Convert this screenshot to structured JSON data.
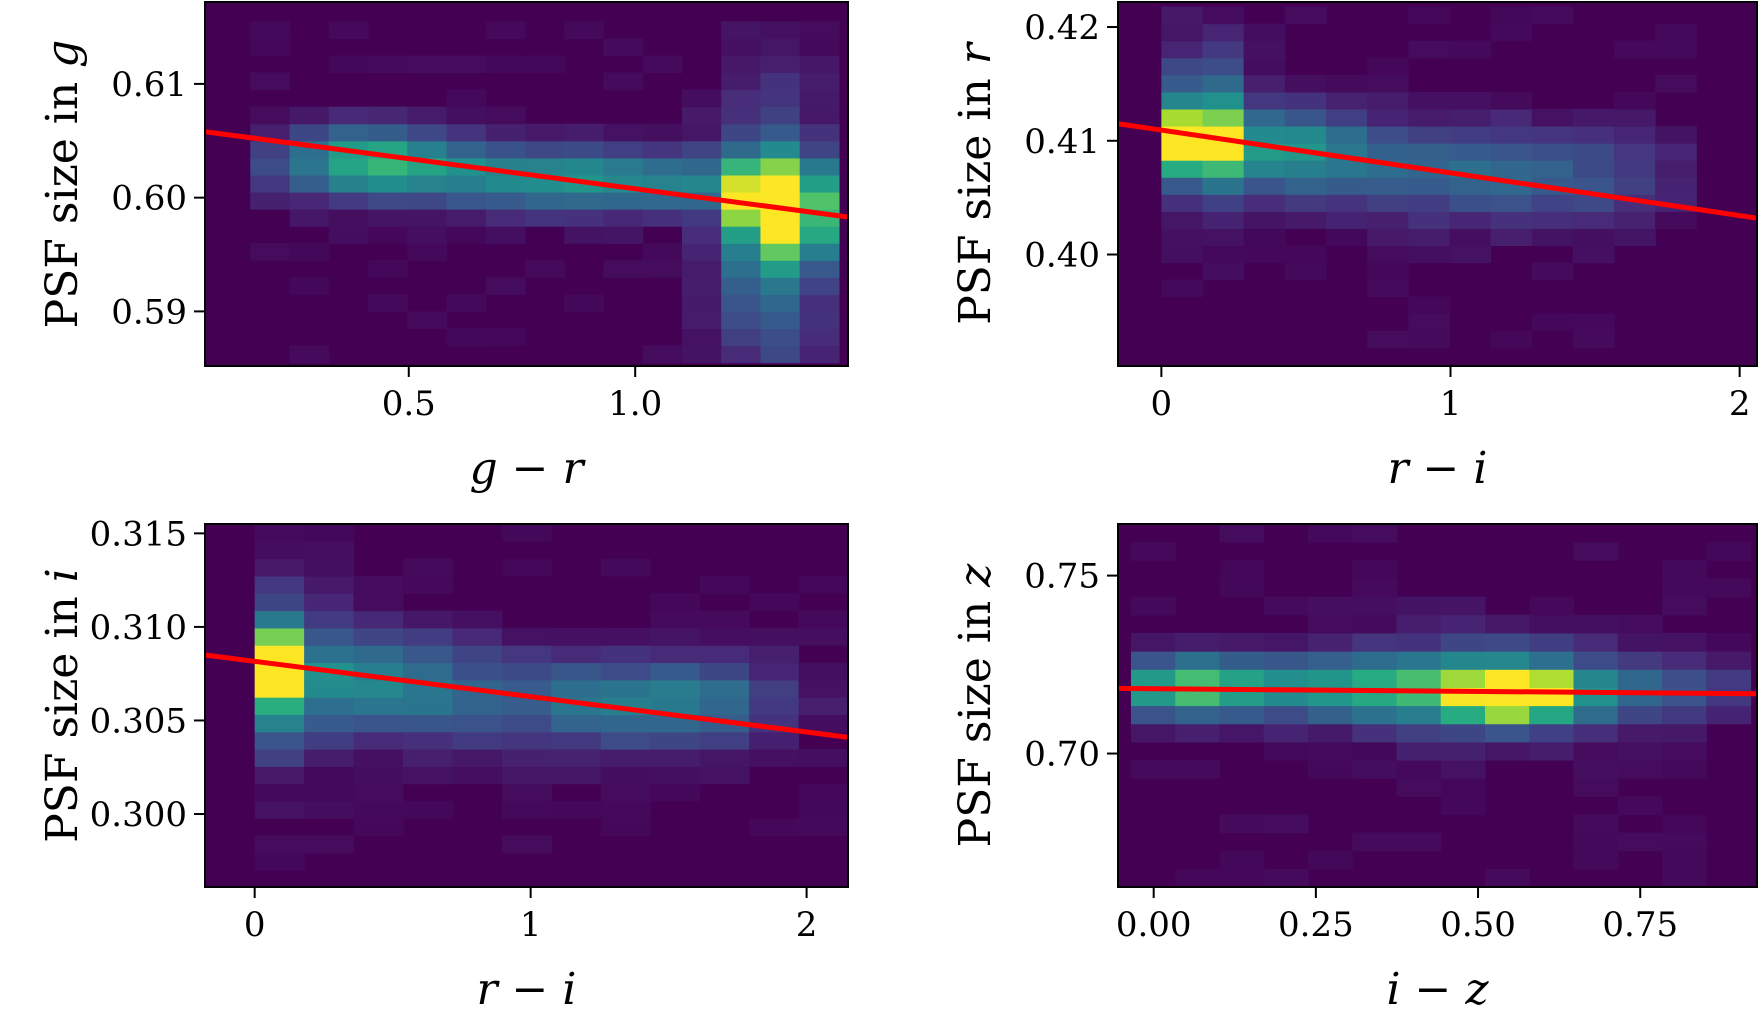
{
  "figure": {
    "panel_count": 4,
    "layout": "2x2 grid",
    "colormap": "viridis",
    "fit_line_color": "#ff0000"
  },
  "chart_data": [
    {
      "id": "g",
      "type": "heatmap",
      "xlabel": "g − r",
      "ylabel_prefix": "PSF size in ",
      "ylabel_band": "g",
      "xlim": [
        0.05,
        1.47
      ],
      "ylim": [
        0.5852,
        0.6172
      ],
      "xticks": [
        {
          "value": 0.5,
          "label": "0.5"
        },
        {
          "value": 1.0,
          "label": "1.0"
        }
      ],
      "yticks": [
        {
          "value": 0.59,
          "label": "0.59"
        },
        {
          "value": 0.6,
          "label": "0.60"
        },
        {
          "value": 0.61,
          "label": "0.61"
        }
      ],
      "fit_line": {
        "x": [
          0.05,
          1.47
        ],
        "y": [
          0.6058,
          0.5983
        ]
      },
      "histogram": {
        "nx": 15,
        "ny": 20,
        "x_edges": [
          0.15,
          1.45
        ],
        "y_edges": [
          0.5855,
          0.6155
        ],
        "peaks": [
          {
            "x": 1.28,
            "y": 0.5995,
            "amp": 1.0,
            "sx": 0.04,
            "sy": 0.0022
          },
          {
            "x": 1.37,
            "y": 0.5985,
            "amp": 0.65,
            "sx": 0.05,
            "sy": 0.0028
          },
          {
            "x": 1.3,
            "y": 0.597,
            "amp": 0.55,
            "sx": 0.08,
            "sy": 0.008
          },
          {
            "x": 0.4,
            "y": 0.6035,
            "amp": 0.55,
            "sx": 0.14,
            "sy": 0.002
          },
          {
            "x": 0.75,
            "y": 0.602,
            "amp": 0.4,
            "sx": 0.3,
            "sy": 0.0022
          },
          {
            "x": 1.05,
            "y": 0.601,
            "amp": 0.28,
            "sx": 0.25,
            "sy": 0.0018
          }
        ]
      }
    },
    {
      "id": "r",
      "type": "heatmap",
      "xlabel": "r − i",
      "ylabel_prefix": "PSF size in ",
      "ylabel_band": "r",
      "xlim": [
        -0.15,
        2.06
      ],
      "ylim": [
        0.3902,
        0.4222
      ],
      "xticks": [
        {
          "value": 0,
          "label": "0"
        },
        {
          "value": 1,
          "label": "1"
        },
        {
          "value": 2,
          "label": "2"
        }
      ],
      "yticks": [
        {
          "value": 0.4,
          "label": "0.40"
        },
        {
          "value": 0.41,
          "label": "0.41"
        },
        {
          "value": 0.42,
          "label": "0.42"
        }
      ],
      "fit_line": {
        "x": [
          -0.15,
          2.06
        ],
        "y": [
          0.4115,
          0.4032
        ]
      },
      "histogram": {
        "nx": 13,
        "ny": 20,
        "x_edges": [
          0.0,
          1.85
        ],
        "y_edges": [
          0.3918,
          0.4218
        ],
        "peaks": [
          {
            "x": 0.12,
            "y": 0.4102,
            "amp": 1.0,
            "sx": 0.08,
            "sy": 0.0018
          },
          {
            "x": 0.15,
            "y": 0.4115,
            "amp": 0.55,
            "sx": 0.1,
            "sy": 0.0045
          },
          {
            "x": 0.42,
            "y": 0.4095,
            "amp": 0.45,
            "sx": 0.2,
            "sy": 0.0025
          },
          {
            "x": 0.9,
            "y": 0.4075,
            "amp": 0.3,
            "sx": 0.4,
            "sy": 0.003
          },
          {
            "x": 1.4,
            "y": 0.4065,
            "amp": 0.2,
            "sx": 0.3,
            "sy": 0.003
          }
        ]
      }
    },
    {
      "id": "i",
      "type": "heatmap",
      "xlabel": "r − i",
      "ylabel_prefix": "PSF size in ",
      "ylabel_band": "i",
      "xlim": [
        -0.18,
        2.15
      ],
      "ylim": [
        0.2961,
        0.3155
      ],
      "xticks": [
        {
          "value": 0,
          "label": "0"
        },
        {
          "value": 1,
          "label": "1"
        },
        {
          "value": 2,
          "label": "2"
        }
      ],
      "yticks": [
        {
          "value": 0.3,
          "label": "0.300"
        },
        {
          "value": 0.305,
          "label": "0.305"
        },
        {
          "value": 0.31,
          "label": "0.310"
        },
        {
          "value": 0.315,
          "label": "0.315"
        }
      ],
      "fit_line": {
        "x": [
          -0.18,
          2.15
        ],
        "y": [
          0.3085,
          0.3041
        ]
      },
      "histogram": {
        "nx": 12,
        "ny": 20,
        "x_edges": [
          0.0,
          2.15
        ],
        "y_edges": [
          0.297,
          0.3155
        ],
        "peaks": [
          {
            "x": 0.1,
            "y": 0.308,
            "amp": 1.0,
            "sx": 0.07,
            "sy": 0.0011
          },
          {
            "x": 0.12,
            "y": 0.3075,
            "amp": 0.55,
            "sx": 0.09,
            "sy": 0.003
          },
          {
            "x": 0.45,
            "y": 0.307,
            "amp": 0.45,
            "sx": 0.25,
            "sy": 0.002
          },
          {
            "x": 1.25,
            "y": 0.306,
            "amp": 0.4,
            "sx": 0.4,
            "sy": 0.0018
          },
          {
            "x": 1.65,
            "y": 0.306,
            "amp": 0.2,
            "sx": 0.2,
            "sy": 0.0015
          }
        ]
      }
    },
    {
      "id": "z",
      "type": "heatmap",
      "xlabel": "i − z",
      "ylabel_prefix": "PSF size in ",
      "ylabel_band": "z",
      "xlim": [
        -0.055,
        0.93
      ],
      "ylim": [
        0.6625,
        0.7645
      ],
      "xticks": [
        {
          "value": 0.0,
          "label": "0.00"
        },
        {
          "value": 0.25,
          "label": "0.25"
        },
        {
          "value": 0.5,
          "label": "0.50"
        },
        {
          "value": 0.75,
          "label": "0.75"
        }
      ],
      "yticks": [
        {
          "value": 0.7,
          "label": "0.70"
        },
        {
          "value": 0.75,
          "label": "0.75"
        }
      ],
      "fit_line": {
        "x": [
          -0.055,
          0.93
        ],
        "y": [
          0.7183,
          0.7168
        ]
      },
      "histogram": {
        "nx": 14,
        "ny": 20,
        "x_edges": [
          -0.035,
          0.92
        ],
        "y_edges": [
          0.6625,
          0.7645
        ],
        "peaks": [
          {
            "x": 0.56,
            "y": 0.7165,
            "amp": 1.0,
            "sx": 0.06,
            "sy": 0.0045
          },
          {
            "x": 0.52,
            "y": 0.7185,
            "amp": 0.45,
            "sx": 0.15,
            "sy": 0.01
          },
          {
            "x": 0.25,
            "y": 0.7185,
            "amp": 0.55,
            "sx": 0.25,
            "sy": 0.006
          },
          {
            "x": 0.05,
            "y": 0.719,
            "amp": 0.45,
            "sx": 0.06,
            "sy": 0.006
          },
          {
            "x": 0.8,
            "y": 0.718,
            "amp": 0.2,
            "sx": 0.1,
            "sy": 0.006
          }
        ]
      }
    }
  ]
}
